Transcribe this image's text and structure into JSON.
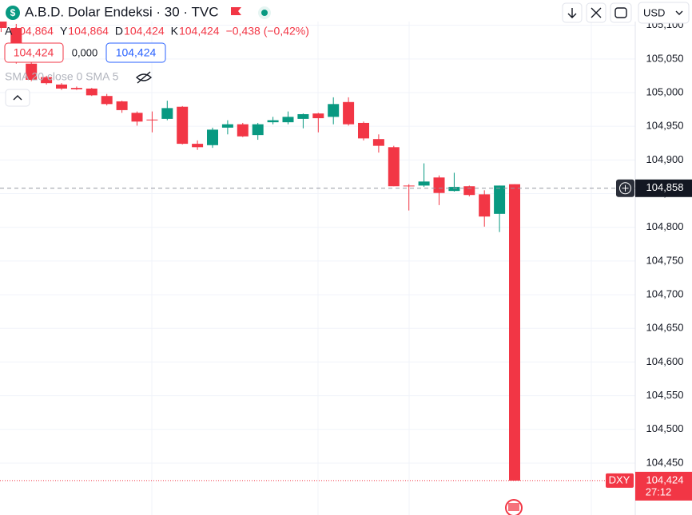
{
  "chart_data": {
    "type": "candlestick",
    "title": "A.B.D. Dolar Endeksi · 30 · TVC",
    "legend": [
      {
        "label": "A",
        "value": "104,864"
      },
      {
        "label": "Y",
        "value": "104,864"
      },
      {
        "label": "D",
        "value": "104,424"
      },
      {
        "label": "K",
        "value": "104,424"
      }
    ],
    "change": "−0,438 (−0,42%)",
    "bid": "104,424",
    "spread": "0,000",
    "ask": "104,424",
    "indicator": "SMA 20 close 0 SMA 5",
    "currency": "USD",
    "symbol": "DXY",
    "countdown": "27:12",
    "up_color": "#089981",
    "down_color": "#f23645",
    "ylim": [
      104.3729,
      105.1375
    ],
    "yticks": [
      {
        "value": 105.1,
        "label": "105,100"
      },
      {
        "value": 105.05,
        "label": "105,050"
      },
      {
        "value": 105.0,
        "label": "105,000"
      },
      {
        "value": 104.95,
        "label": "104,950"
      },
      {
        "value": 104.9,
        "label": "104,900"
      },
      {
        "value": 104.85,
        "label": "104,850"
      },
      {
        "value": 104.8,
        "label": "104,800"
      },
      {
        "value": 104.75,
        "label": "104,750"
      },
      {
        "value": 104.7,
        "label": "104,700"
      },
      {
        "value": 104.65,
        "label": "104,650"
      },
      {
        "value": 104.6,
        "label": "104,600"
      },
      {
        "value": 104.55,
        "label": "104,550"
      },
      {
        "value": 104.5,
        "label": "104,500"
      },
      {
        "value": 104.45,
        "label": "104,450"
      }
    ],
    "grid": true,
    "crosshair": {
      "value": 104.858,
      "label": "104,858"
    },
    "last_price": {
      "value": 104.424,
      "label": "104,424"
    },
    "ohlc": [
      [
        105.126,
        105.132,
        105.09,
        105.096
      ],
      [
        105.096,
        105.102,
        105.043,
        105.049
      ],
      [
        105.043,
        105.049,
        105.017,
        105.019
      ],
      [
        105.023,
        105.025,
        105.012,
        105.014
      ],
      [
        105.012,
        105.014,
        105.004,
        105.006
      ],
      [
        105.007,
        105.009,
        105.004,
        105.005
      ],
      [
        105.006,
        105.007,
        104.995,
        104.996
      ],
      [
        104.995,
        104.998,
        104.981,
        104.983
      ],
      [
        104.987,
        104.988,
        104.97,
        104.974
      ],
      [
        104.97,
        104.972,
        104.951,
        104.957
      ],
      [
        104.96,
        104.972,
        104.941,
        104.959
      ],
      [
        104.961,
        104.988,
        104.959,
        104.977
      ],
      [
        104.979,
        104.98,
        104.923,
        104.924
      ],
      [
        104.924,
        104.929,
        104.915,
        104.919
      ],
      [
        104.922,
        104.948,
        104.918,
        104.945
      ],
      [
        104.948,
        104.959,
        104.938,
        104.953
      ],
      [
        104.953,
        104.955,
        104.934,
        104.935
      ],
      [
        104.937,
        104.955,
        104.93,
        104.953
      ],
      [
        104.956,
        104.964,
        104.953,
        104.959
      ],
      [
        104.956,
        104.972,
        104.953,
        104.964
      ],
      [
        104.961,
        104.969,
        104.947,
        104.968
      ],
      [
        104.969,
        104.97,
        104.941,
        104.962
      ],
      [
        104.964,
        104.993,
        104.953,
        104.983
      ],
      [
        104.986,
        104.993,
        104.951,
        104.953
      ],
      [
        104.955,
        104.957,
        104.929,
        104.932
      ],
      [
        104.931,
        104.938,
        104.911,
        104.921
      ],
      [
        104.919,
        104.921,
        104.861,
        104.861
      ],
      [
        104.862,
        104.864,
        104.825,
        104.861
      ],
      [
        104.862,
        104.895,
        104.86,
        104.868
      ],
      [
        104.874,
        104.877,
        104.833,
        104.851
      ],
      [
        104.854,
        104.881,
        104.853,
        104.86
      ],
      [
        104.861,
        104.862,
        104.846,
        104.848
      ],
      [
        104.849,
        104.855,
        104.801,
        104.816
      ],
      [
        104.82,
        104.862,
        104.793,
        104.862
      ],
      [
        104.864,
        104.864,
        104.424,
        104.424
      ]
    ]
  }
}
